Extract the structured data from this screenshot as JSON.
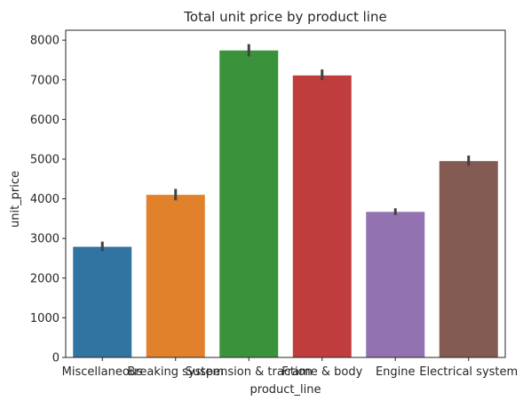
{
  "chart_data": {
    "type": "bar",
    "title": "Total unit price by product line",
    "xlabel": "product_line",
    "ylabel": "unit_price",
    "categories": [
      "Miscellaneous",
      "Breaking system",
      "Suspension & traction",
      "Frame & body",
      "Engine",
      "Electrical system"
    ],
    "values": [
      2790,
      4100,
      7740,
      7110,
      3670,
      4950
    ],
    "error_bars": [
      [
        2680,
        2920
      ],
      [
        3960,
        4250
      ],
      [
        7590,
        7900
      ],
      [
        6990,
        7260
      ],
      [
        3590,
        3760
      ],
      [
        4830,
        5090
      ]
    ],
    "colors": [
      "#3274a1",
      "#e1812c",
      "#3a923a",
      "#c03d3e",
      "#9372b2",
      "#845b53"
    ],
    "ylim": [
      0,
      8250
    ],
    "yticks": [
      0,
      1000,
      2000,
      3000,
      4000,
      5000,
      6000,
      7000,
      8000
    ],
    "grid": false,
    "legend": "none"
  }
}
